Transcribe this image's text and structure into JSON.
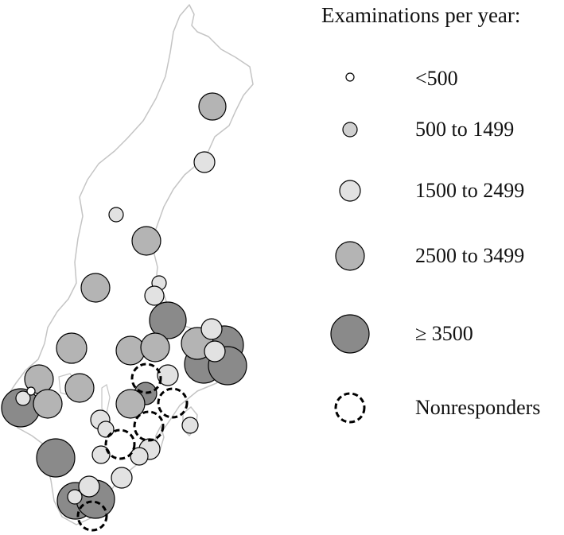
{
  "legend": {
    "title": "Examinations per year:",
    "items": [
      {
        "key": "lt500",
        "label": "<500",
        "fill": "#ffffff",
        "dashed": false
      },
      {
        "key": "500-1499",
        "label": "500 to 1499",
        "fill": "#d0d0d0",
        "dashed": false
      },
      {
        "key": "1500-2499",
        "label": "1500 to 2499",
        "fill": "#e2e2e2",
        "dashed": false
      },
      {
        "key": "2500-3499",
        "label": "2500 to 3499",
        "fill": "#b4b4b4",
        "dashed": false
      },
      {
        "key": "ge3500",
        "label": "≥ 3500",
        "fill": "#8a8a8a",
        "dashed": false
      },
      {
        "key": "nonresponder",
        "label": "Nonresponders",
        "fill": "none",
        "dashed": true
      }
    ]
  },
  "colors": {
    "outline": "#c4c4c4",
    "marker_stroke": "#000000"
  }
}
